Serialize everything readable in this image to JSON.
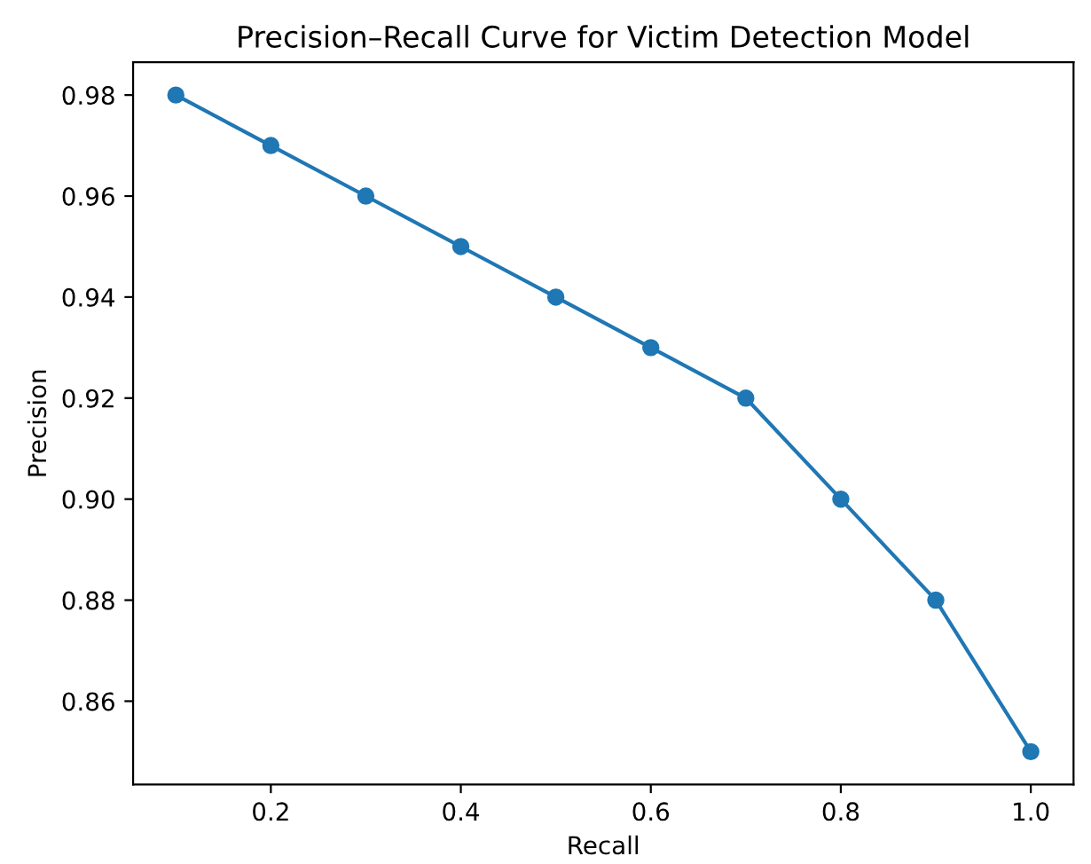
{
  "chart_data": {
    "type": "line",
    "title": "Precision–Recall Curve for Victim Detection Model",
    "xlabel": "Recall",
    "ylabel": "Precision",
    "x": [
      0.1,
      0.2,
      0.3,
      0.4,
      0.5,
      0.6,
      0.7,
      0.8,
      0.9,
      1.0
    ],
    "series": [
      {
        "color": "#1f77b4",
        "values": [
          0.98,
          0.97,
          0.96,
          0.95,
          0.94,
          0.93,
          0.92,
          0.9,
          0.88,
          0.85
        ]
      }
    ],
    "marker": "circle",
    "line_style": "solid",
    "grid": false,
    "legend": false,
    "xlim": [
      0.055,
      1.045
    ],
    "ylim": [
      0.8435,
      0.9865
    ],
    "xticks": [
      0.2,
      0.4,
      0.6,
      0.8,
      {
        "value": 1.0,
        "label": "1.0"
      }
    ],
    "yticks": [
      0.86,
      0.88,
      {
        "value": 0.9,
        "label": "0.90"
      },
      0.92,
      0.94,
      0.96,
      0.98
    ]
  }
}
